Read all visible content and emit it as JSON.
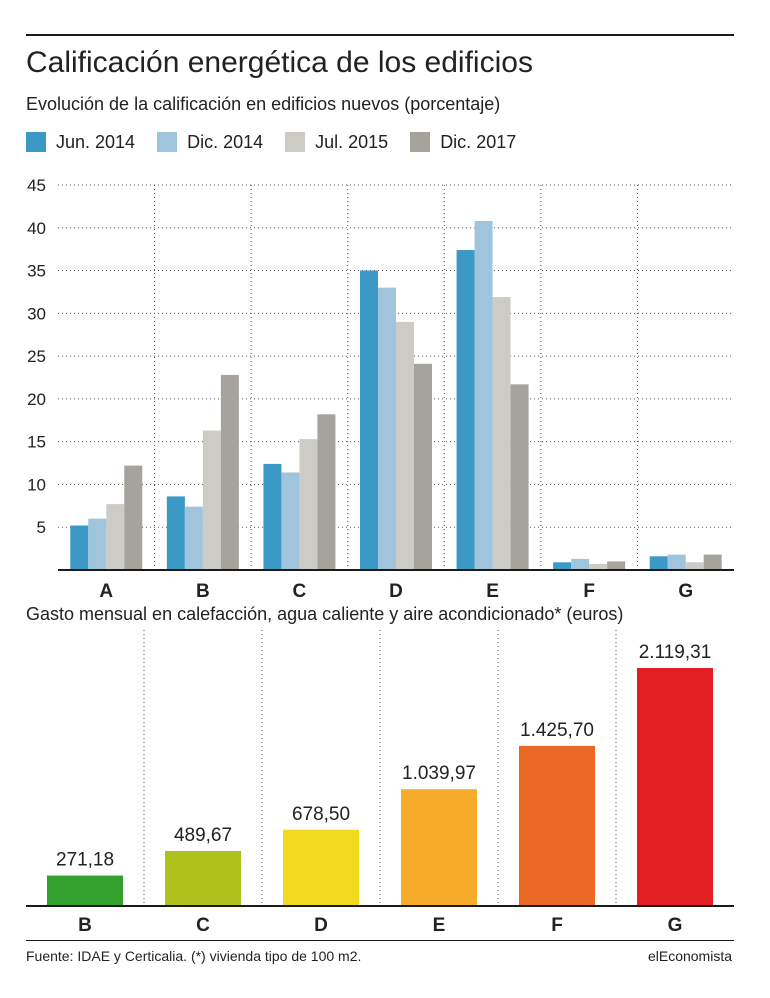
{
  "title": "Calificación energética de los edificios",
  "source": "Fuente: IDAE y Certicalia. (*) vivienda tipo de 100 m2.",
  "brand": "elEconomista",
  "chart_data": [
    {
      "type": "bar",
      "title": "Evolución de la calificación en edificios nuevos (porcentaje)",
      "categories": [
        "A",
        "B",
        "C",
        "D",
        "E",
        "F",
        "G"
      ],
      "series": [
        {
          "name": "Jun. 2014",
          "color": "#3c98c4",
          "values": [
            5.2,
            8.6,
            12.4,
            35,
            37.4,
            0.9,
            1.6
          ]
        },
        {
          "name": "Dic. 2014",
          "color": "#9fc4dc",
          "values": [
            6,
            7.4,
            11.4,
            33,
            40.8,
            1.3,
            1.8
          ]
        },
        {
          "name": "Jul. 2015",
          "color": "#cccbc6",
          "values": [
            7.7,
            16.3,
            15.3,
            29,
            31.9,
            0.7,
            0.9
          ]
        },
        {
          "name": "Dic. 2017",
          "color": "#a6a39d",
          "values": [
            12.2,
            22.8,
            18.2,
            24.1,
            21.7,
            1,
            1.8
          ]
        }
      ],
      "yticks": [
        5,
        10,
        15,
        20,
        25,
        30,
        35,
        40,
        45
      ],
      "ylim": [
        0,
        45
      ],
      "grid": true,
      "legend": "top"
    },
    {
      "type": "bar",
      "title": "Gasto mensual en calefacción, agua caliente y aire acondicionado* (euros)",
      "categories": [
        "B",
        "C",
        "D",
        "E",
        "F",
        "G"
      ],
      "values": [
        271.18,
        489.67,
        678.5,
        1039.97,
        1425.7,
        2119.31
      ],
      "value_labels": [
        "271,18",
        "489,67",
        "678,50",
        "1.039,97",
        "1.425,70",
        "2.119,31"
      ],
      "colors": [
        "#34a02e",
        "#afc11c",
        "#f1d91e",
        "#f6ac28",
        "#e96823",
        "#e31e23"
      ],
      "ylim": [
        0,
        2119.31
      ],
      "grid": true
    }
  ]
}
